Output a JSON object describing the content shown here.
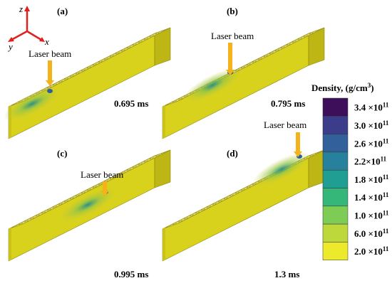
{
  "axes": {
    "z": "z",
    "y": "y",
    "x": "x"
  },
  "panels": [
    {
      "label": "(a)",
      "beam": "Laser beam",
      "time": "0.695 ms"
    },
    {
      "label": "(b)",
      "beam": "Laser beam",
      "time": "0.795 ms"
    },
    {
      "label": "(c)",
      "beam": "Laser beam",
      "time": "0.995 ms"
    },
    {
      "label": "(d)",
      "beam": "Laser beam",
      "time": "1.3 ms"
    }
  ],
  "colorbar": {
    "title": "Density, (g/cm",
    "title_sup": "3",
    "title_end": ")",
    "colors": [
      "#3d0f5a",
      "#3b3c8a",
      "#31609a",
      "#28819c",
      "#209e93",
      "#35b77a",
      "#7ccc55",
      "#bcd83a",
      "#ecea2a"
    ],
    "ticks": [
      {
        "base": "3.4 ×10",
        "exp": "11"
      },
      {
        "base": "3.0 ×10",
        "exp": "11"
      },
      {
        "base": "2.6 ×10",
        "exp": "11"
      },
      {
        "base": "2.2×10",
        "exp": "11"
      },
      {
        "base": "1.8 ×10",
        "exp": "11"
      },
      {
        "base": "1.4 ×10",
        "exp": "11"
      },
      {
        "base": "1.0 ×10",
        "exp": "11"
      },
      {
        "base": "6.0 ×10",
        "exp": "11"
      },
      {
        "base": "2.0 ×10",
        "exp": "11"
      }
    ]
  }
}
